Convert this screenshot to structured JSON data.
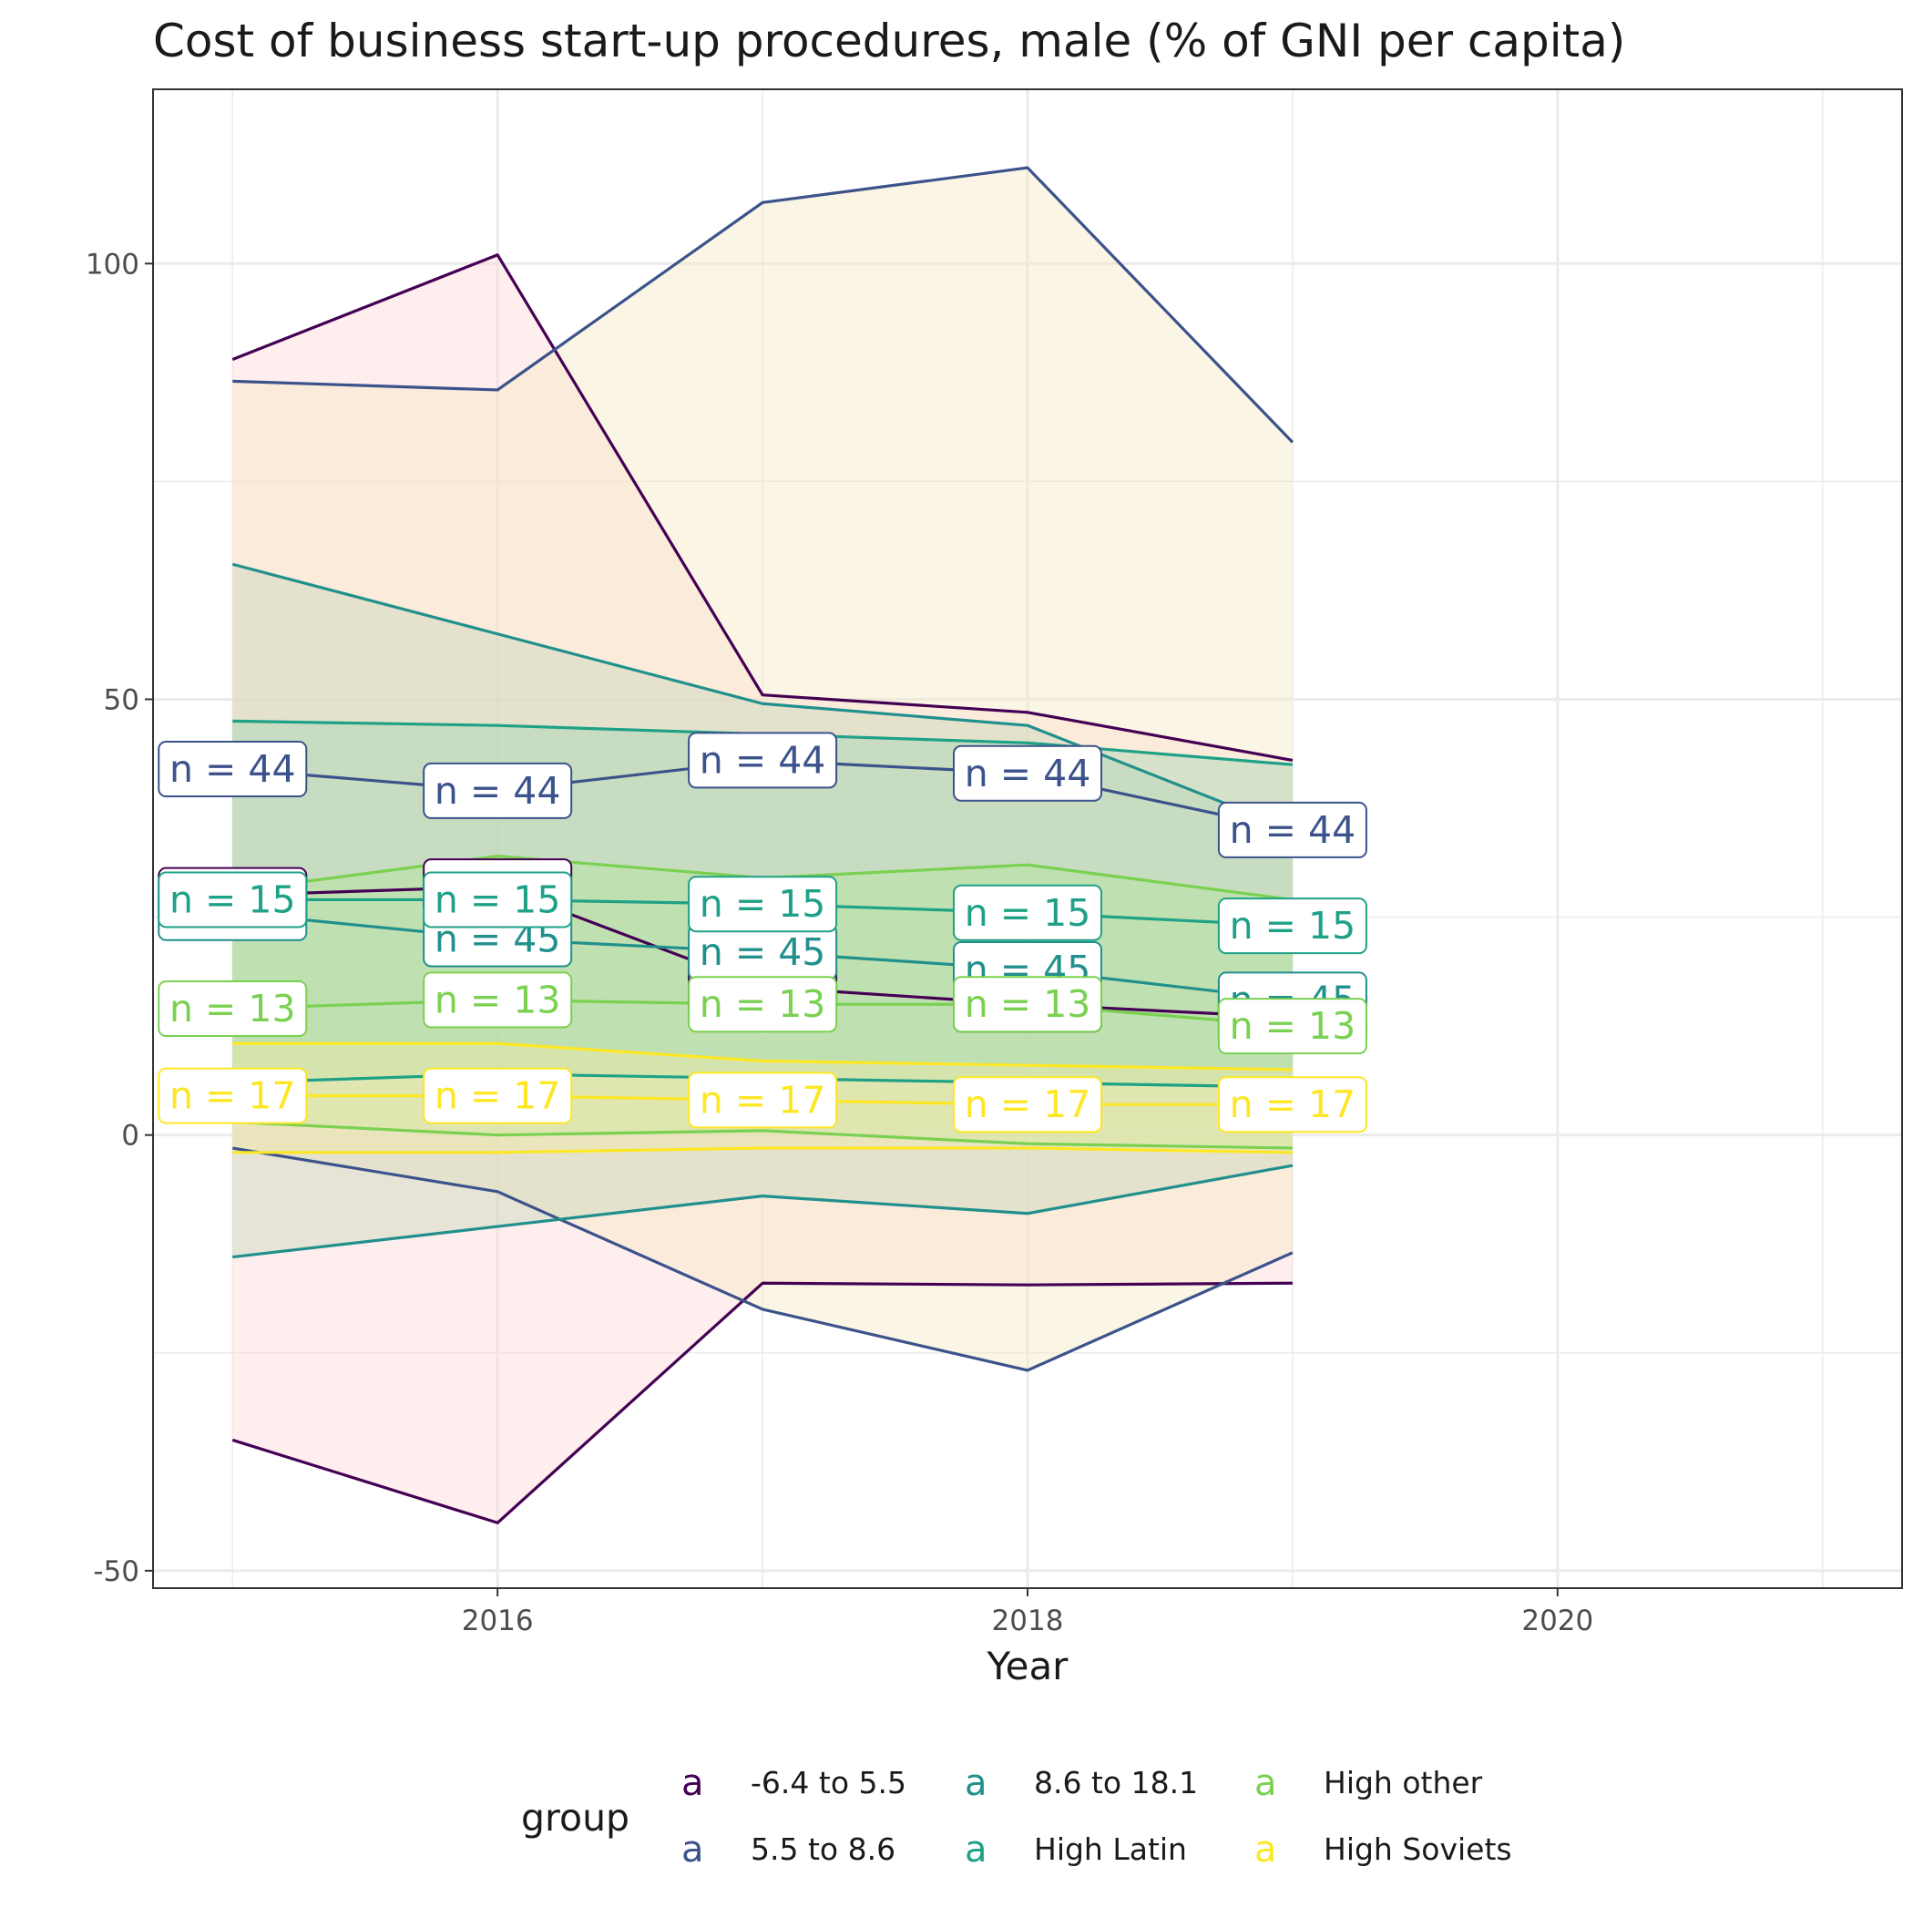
{
  "chart_data": {
    "type": "line",
    "title": "Cost of business start-up procedures, male (% of GNI per capita)",
    "xlabel": "Year",
    "ylabel": "",
    "xlim": [
      2014.7,
      2021.3
    ],
    "ylim": [
      -52,
      120
    ],
    "x_ticks": [
      2016,
      2018,
      2020
    ],
    "x_tick_labels": [
      "2016",
      "2018",
      "2020"
    ],
    "y_ticks": [
      -50,
      0,
      50,
      100
    ],
    "y_tick_labels": [
      "-50",
      "0",
      "50",
      "100"
    ],
    "grid": true,
    "legend": {
      "title": "group",
      "position": "bottom",
      "key_glyph": "a"
    },
    "x": [
      2015,
      2016,
      2017,
      2018,
      2019
    ],
    "series": [
      {
        "name": "-6.4 to 5.5",
        "color": "#440154",
        "fill": "#ffd7d7",
        "mean": [
          27.5,
          28.5,
          17.0,
          15.0,
          13.5
        ],
        "upper": [
          89.0,
          101.0,
          50.5,
          48.5,
          43.0
        ],
        "lower": [
          -35.0,
          -44.5,
          -17.0,
          -17.2,
          -17.0
        ],
        "n_labels": [
          "n = 46",
          "n = 46",
          "n = 46",
          "n = 46",
          "n = 46"
        ]
      },
      {
        "name": "5.5 to 8.6",
        "color": "#3b528b",
        "fill": "#f5e8c0",
        "mean": [
          42.0,
          39.5,
          43.0,
          41.5,
          35.0
        ],
        "upper": [
          86.5,
          85.5,
          107.0,
          111.0,
          79.5
        ],
        "lower": [
          -1.5,
          -6.5,
          -20.0,
          -27.0,
          -13.5
        ],
        "n_labels": [
          "n = 44",
          "n = 44",
          "n = 44",
          "n = 44",
          "n = 44"
        ]
      },
      {
        "name": "8.6 to 18.1",
        "color": "#21908c",
        "fill": "#c3d6b8",
        "mean": [
          25.5,
          22.5,
          21.0,
          19.0,
          15.5
        ],
        "upper": [
          65.5,
          57.5,
          49.5,
          47.0,
          35.0
        ],
        "lower": [
          -14.0,
          -10.5,
          -7.0,
          -9.0,
          -3.5
        ],
        "n_labels": [
          "n = 45",
          "n = 45",
          "n = 45",
          "n = 45",
          "n = 45"
        ]
      },
      {
        "name": "High Latin",
        "color": "#1fa187",
        "fill": "#9fd4b0",
        "mean": [
          27.0,
          27.0,
          26.5,
          25.5,
          24.0
        ],
        "upper": [
          47.5,
          47.0,
          46.0,
          45.0,
          42.5
        ],
        "lower": [
          6.0,
          7.0,
          6.5,
          6.0,
          5.5
        ],
        "n_labels": [
          "n = 15",
          "n = 15",
          "n = 15",
          "n = 15",
          "n = 15"
        ]
      },
      {
        "name": "High other",
        "color": "#7ad151",
        "fill": "#b4e49a",
        "mean": [
          14.5,
          15.5,
          15.0,
          15.0,
          12.5
        ],
        "upper": [
          28.0,
          32.0,
          29.5,
          31.0,
          27.0
        ],
        "lower": [
          1.5,
          0.0,
          0.5,
          -1.0,
          -1.5
        ],
        "n_labels": [
          "n = 13",
          "n = 13",
          "n = 13",
          "n = 13",
          "n = 13"
        ]
      },
      {
        "name": "High Soviets",
        "color": "#fde725",
        "fill": "#f2e9a8",
        "mean": [
          4.5,
          4.5,
          4.0,
          3.5,
          3.5
        ],
        "upper": [
          10.5,
          10.5,
          8.5,
          8.0,
          7.5
        ],
        "lower": [
          -2.0,
          -2.0,
          -1.5,
          -1.5,
          -2.0
        ],
        "n_labels": [
          "n = 17",
          "n = 17",
          "n = 17",
          "n = 17",
          "n = 17"
        ]
      }
    ]
  }
}
